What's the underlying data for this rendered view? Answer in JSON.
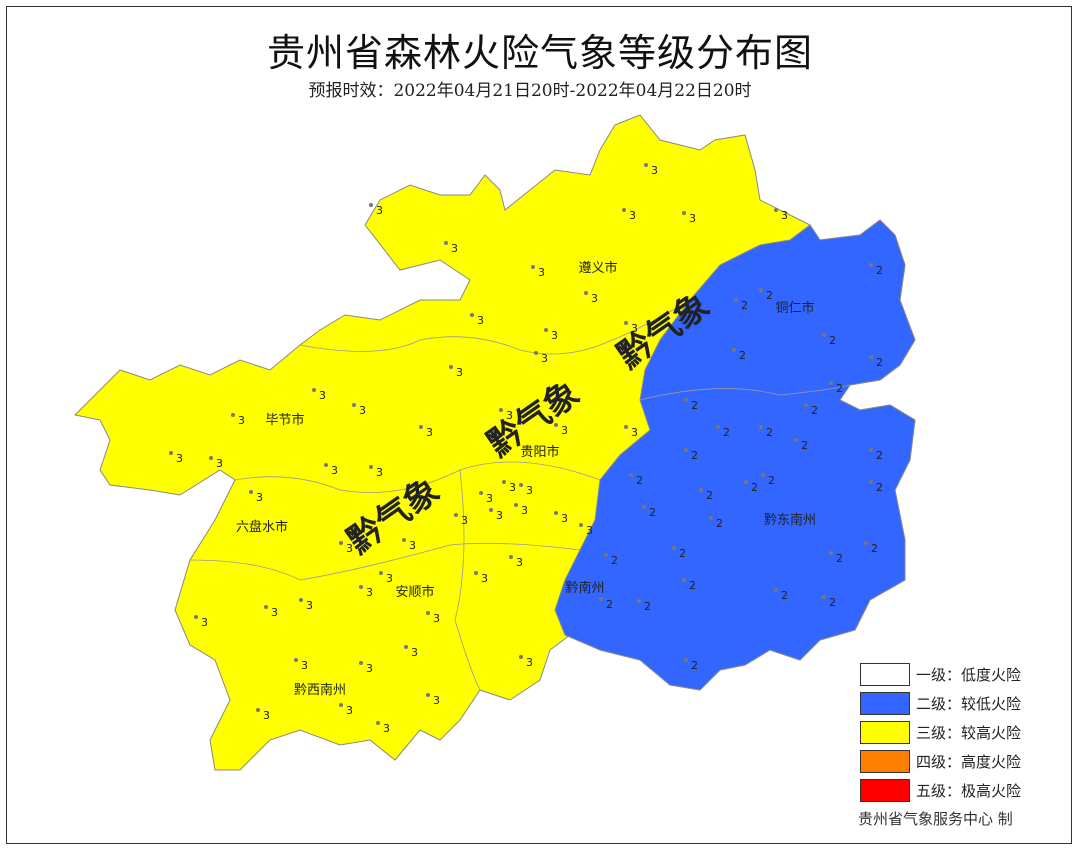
{
  "title": "贵州省森林火险气象等级分布图",
  "subtitle": "预报时效：2022年04月21日20时-2022年04月22日20时",
  "colors": {
    "level2": "#3366ff",
    "level3": "#ffff00",
    "border": "#888888",
    "station": "#777777"
  },
  "regions": [
    {
      "name": "遵义市"
    },
    {
      "name": "铜仁市"
    },
    {
      "name": "毕节市"
    },
    {
      "name": "贵阳市"
    },
    {
      "name": "六盘水市"
    },
    {
      "name": "安顺市"
    },
    {
      "name": "黔南州"
    },
    {
      "name": "黔东南州"
    },
    {
      "name": "黔西南州"
    }
  ],
  "watermark": "黔气象",
  "stations_level3": [
    "3",
    "3",
    "3",
    "3",
    "3",
    "3",
    "3",
    "3",
    "3",
    "3",
    "3",
    "3",
    "3",
    "3",
    "3",
    "3",
    "3",
    "3",
    "3",
    "3",
    "3",
    "3",
    "3",
    "3",
    "3",
    "3",
    "3",
    "3",
    "3",
    "3",
    "3",
    "3",
    "3",
    "3",
    "3",
    "3",
    "3",
    "3",
    "3",
    "3",
    "3",
    "3",
    "3",
    "3",
    "3",
    "3",
    "3",
    "3",
    "3",
    "3",
    "3"
  ],
  "stations_level2": [
    "2",
    "2",
    "2",
    "2",
    "2",
    "2",
    "2",
    "2",
    "2",
    "2",
    "2",
    "2",
    "2",
    "2",
    "2",
    "2",
    "2",
    "2",
    "2",
    "2",
    "2",
    "2",
    "2",
    "2",
    "2",
    "2",
    "2",
    "2",
    "2",
    "2",
    "2"
  ],
  "legend": [
    {
      "label": "一级：低度火险",
      "color": "#ffffff"
    },
    {
      "label": "二级：较低火险",
      "color": "#3366ff"
    },
    {
      "label": "三级：较高火险",
      "color": "#ffff00"
    },
    {
      "label": "四级：高度火险",
      "color": "#ff8000"
    },
    {
      "label": "五级：极高火险",
      "color": "#ff0000"
    }
  ],
  "credit": "贵州省气象服务中心 制"
}
